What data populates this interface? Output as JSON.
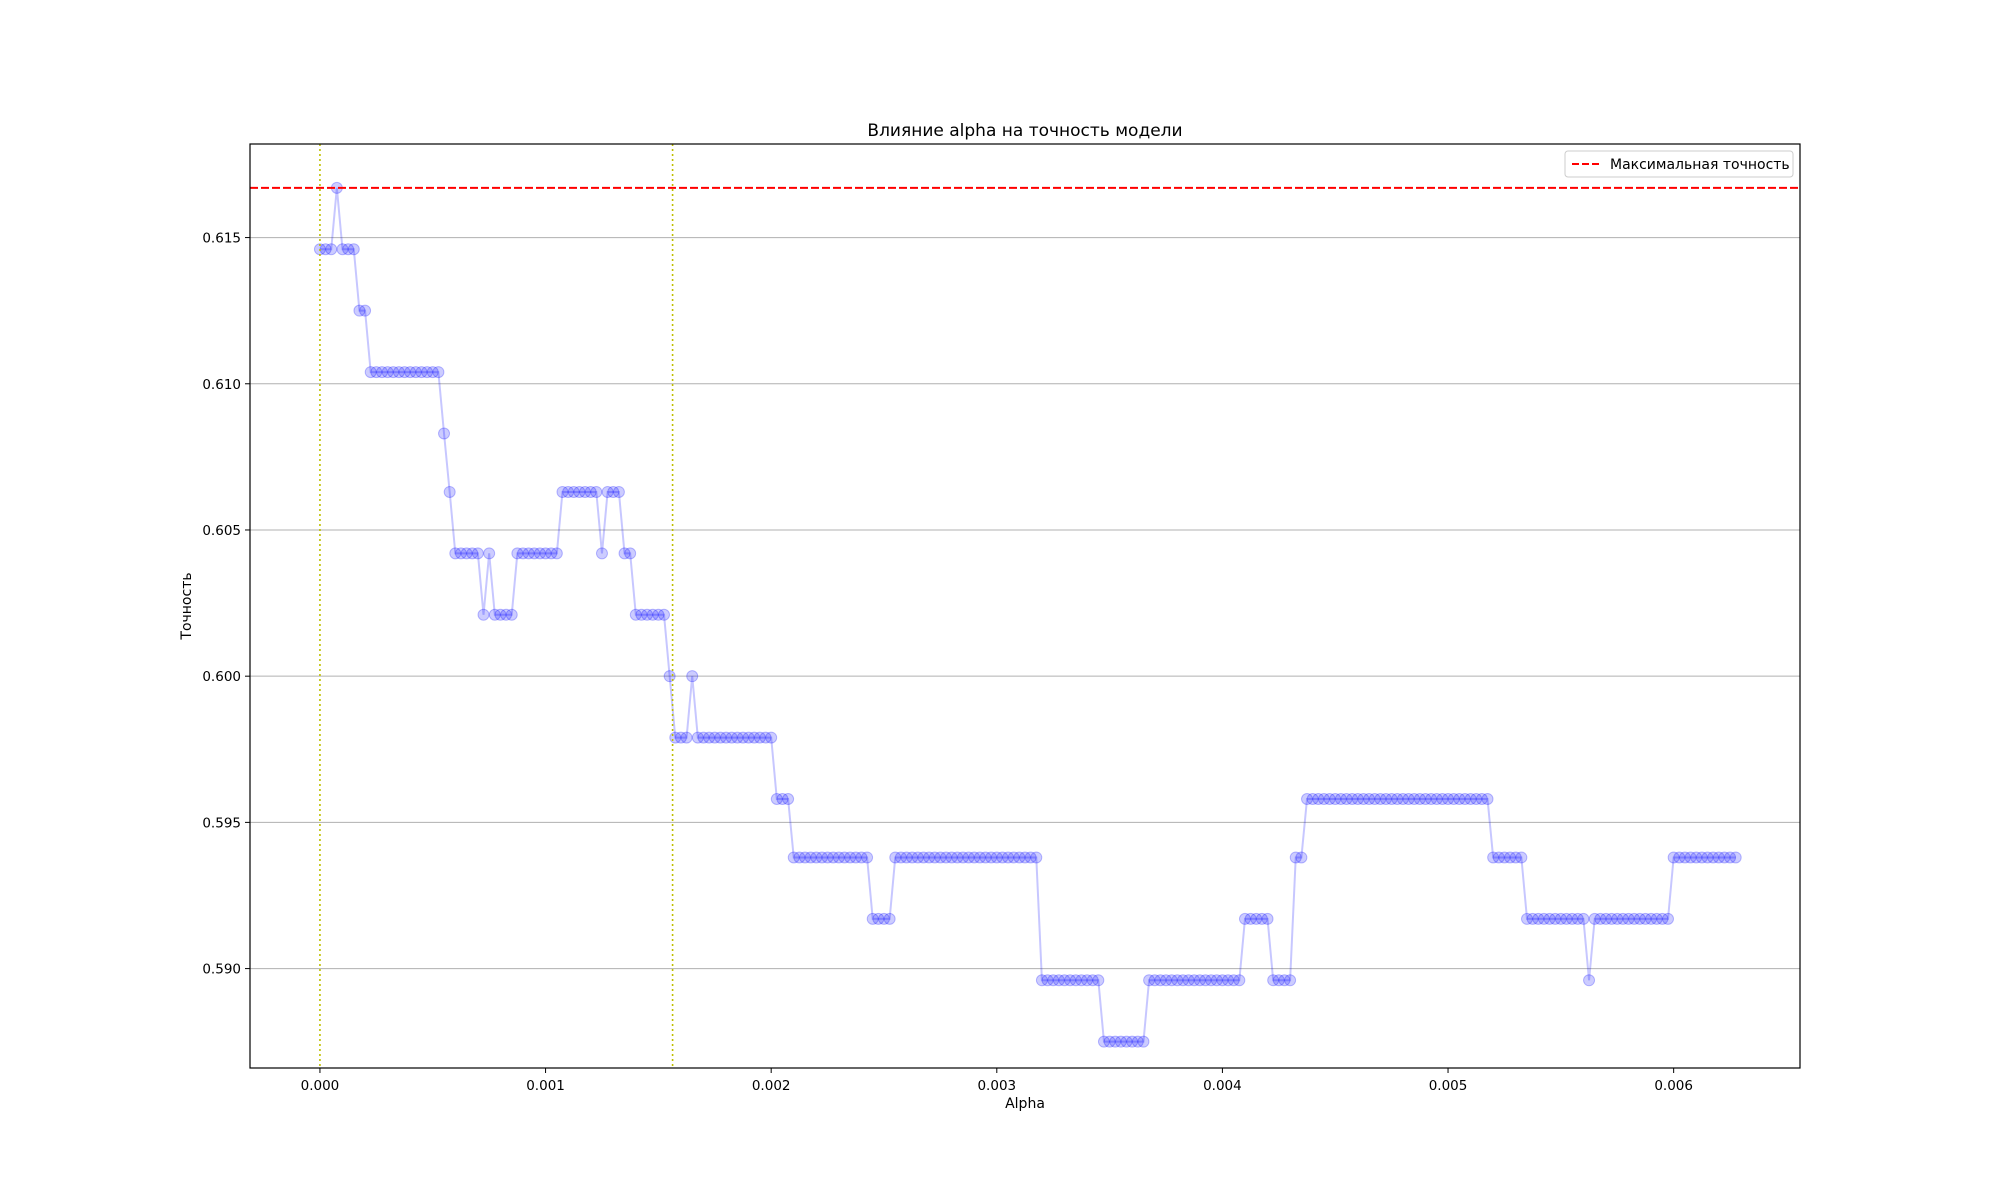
{
  "chart_data": {
    "type": "line",
    "title": "Влияние alpha на точность модели",
    "xlabel": "Alpha",
    "ylabel": "Точность",
    "xlim": [
      -0.00031,
      0.00656
    ],
    "ylim": [
      0.5866,
      0.6182
    ],
    "xticks": [
      0.0,
      0.001,
      0.002,
      0.003,
      0.004,
      0.005,
      0.006
    ],
    "xtick_labels": [
      "0.000",
      "0.001",
      "0.002",
      "0.003",
      "0.004",
      "0.005",
      "0.006"
    ],
    "yticks": [
      0.59,
      0.595,
      0.6,
      0.605,
      0.61,
      0.615
    ],
    "ytick_labels": [
      "0.590",
      "0.595",
      "0.600",
      "0.605",
      "0.610",
      "0.615"
    ],
    "grid": "horizontal",
    "legend": {
      "position": "top-right",
      "entries": [
        "Максимальная точность"
      ]
    },
    "x_step": 2.5e-05,
    "x_start": 0.0,
    "series": [
      {
        "color": "#0000ff",
        "values": [
          0.6146,
          0.6146,
          0.6146,
          0.6167,
          0.6146,
          0.6146,
          0.6146,
          0.6125,
          0.6125,
          0.6104,
          0.6104,
          0.6104,
          0.6104,
          0.6104,
          0.6104,
          0.6104,
          0.6104,
          0.6104,
          0.6104,
          0.6104,
          0.6104,
          0.6104,
          0.6083,
          0.6063,
          0.6042,
          0.6042,
          0.6042,
          0.6042,
          0.6042,
          0.6021,
          0.6042,
          0.6021,
          0.6021,
          0.6021,
          0.6021,
          0.6042,
          0.6042,
          0.6042,
          0.6042,
          0.6042,
          0.6042,
          0.6042,
          0.6042,
          0.6063,
          0.6063,
          0.6063,
          0.6063,
          0.6063,
          0.6063,
          0.6063,
          0.6042,
          0.6063,
          0.6063,
          0.6063,
          0.6042,
          0.6042,
          0.6021,
          0.6021,
          0.6021,
          0.6021,
          0.6021,
          0.6021,
          0.6,
          0.5979,
          0.5979,
          0.5979,
          0.6,
          0.5979,
          0.5979,
          0.5979,
          0.5979,
          0.5979,
          0.5979,
          0.5979,
          0.5979,
          0.5979,
          0.5979,
          0.5979,
          0.5979,
          0.5979,
          0.5979,
          0.5958,
          0.5958,
          0.5958,
          0.5938,
          0.5938,
          0.5938,
          0.5938,
          0.5938,
          0.5938,
          0.5938,
          0.5938,
          0.5938,
          0.5938,
          0.5938,
          0.5938,
          0.5938,
          0.5938,
          0.5917,
          0.5917,
          0.5917,
          0.5917,
          0.5938,
          0.5938,
          0.5938,
          0.5938,
          0.5938,
          0.5938,
          0.5938,
          0.5938,
          0.5938,
          0.5938,
          0.5938,
          0.5938,
          0.5938,
          0.5938,
          0.5938,
          0.5938,
          0.5938,
          0.5938,
          0.5938,
          0.5938,
          0.5938,
          0.5938,
          0.5938,
          0.5938,
          0.5938,
          0.5938,
          0.5896,
          0.5896,
          0.5896,
          0.5896,
          0.5896,
          0.5896,
          0.5896,
          0.5896,
          0.5896,
          0.5896,
          0.5896,
          0.5875,
          0.5875,
          0.5875,
          0.5875,
          0.5875,
          0.5875,
          0.5875,
          0.5875,
          0.5896,
          0.5896,
          0.5896,
          0.5896,
          0.5896,
          0.5896,
          0.5896,
          0.5896,
          0.5896,
          0.5896,
          0.5896,
          0.5896,
          0.5896,
          0.5896,
          0.5896,
          0.5896,
          0.5896,
          0.5917,
          0.5917,
          0.5917,
          0.5917,
          0.5917,
          0.5896,
          0.5896,
          0.5896,
          0.5896,
          0.5938,
          0.5938,
          0.5958,
          0.5958,
          0.5958,
          0.5958,
          0.5958,
          0.5958,
          0.5958,
          0.5958,
          0.5958,
          0.5958,
          0.5958,
          0.5958,
          0.5958,
          0.5958,
          0.5958,
          0.5958,
          0.5958,
          0.5958,
          0.5958,
          0.5958,
          0.5958,
          0.5958,
          0.5958,
          0.5958,
          0.5958,
          0.5958,
          0.5958,
          0.5958,
          0.5958,
          0.5958,
          0.5958,
          0.5958,
          0.5958,
          0.5938,
          0.5938,
          0.5938,
          0.5938,
          0.5938,
          0.5938,
          0.5917,
          0.5917,
          0.5917,
          0.5917,
          0.5917,
          0.5917,
          0.5917,
          0.5917,
          0.5917,
          0.5917,
          0.5917,
          0.5896,
          0.5917,
          0.5917,
          0.5917,
          0.5917,
          0.5917,
          0.5917,
          0.5917,
          0.5917,
          0.5917,
          0.5917,
          0.5917,
          0.5917,
          0.5917,
          0.5917,
          0.5938,
          0.5938,
          0.5938,
          0.5938,
          0.5938,
          0.5938,
          0.5938,
          0.5938,
          0.5938,
          0.5938,
          0.5938,
          0.5938
        ]
      }
    ],
    "max_line": {
      "y": 0.6167,
      "color": "#ff0000",
      "style": "dashed"
    },
    "vertical_lines": [
      {
        "x": 0.0,
        "color": "#bfbf00",
        "style": "dotted"
      },
      {
        "x": 0.001563,
        "color": "#bfbf00",
        "style": "dotted"
      }
    ]
  }
}
